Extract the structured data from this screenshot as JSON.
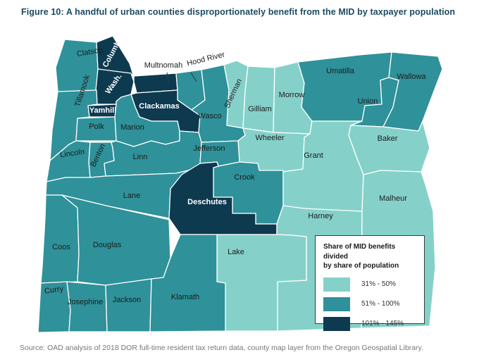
{
  "figure": {
    "title": "Figure 10: A handful of urban counties disproportionately benefit from the MID by taxpayer population",
    "source": "Source: OAD analysis of 2018 DOR full-time resident tax return data, county map layer from the Oregon Geospatial Library."
  },
  "legend": {
    "title_line1": "Share of MID benefits divided",
    "title_line2": "by share of population",
    "items": [
      {
        "label": "31% - 50%",
        "color": "#85d1ca"
      },
      {
        "label": "51% - 100%",
        "color": "#2f9199"
      },
      {
        "label": "101% - 145%",
        "color": "#0e3a50"
      }
    ]
  },
  "map": {
    "region": "Oregon counties",
    "stroke_color": "#ffffff"
  },
  "chart_data": {
    "type": "heatmap",
    "subtype": "choropleth-county-map",
    "region": "Oregon",
    "title": "Figure 10: A handful of urban counties disproportionately benefit from the MID by taxpayer population",
    "legend_title": "Share of MID benefits divided by share of population",
    "buckets": [
      "31% - 50%",
      "51% - 100%",
      "101% - 145%"
    ],
    "counties": [
      {
        "name": "Clatsop",
        "map_label": "Clatsop",
        "bucket": "51% - 100%"
      },
      {
        "name": "Columbia",
        "map_label": "Columb.",
        "bucket": "101% - 145%"
      },
      {
        "name": "Washington",
        "map_label": "Wash.",
        "bucket": "101% - 145%"
      },
      {
        "name": "Multnomah",
        "map_label": "Multnomah",
        "bucket": "101% - 145%"
      },
      {
        "name": "Hood River",
        "map_label": "Hood River",
        "bucket": "51% - 100%"
      },
      {
        "name": "Tillamook",
        "map_label": "Tillamook",
        "bucket": "51% - 100%"
      },
      {
        "name": "Yamhill",
        "map_label": "Yamhill",
        "bucket": "101% - 145%"
      },
      {
        "name": "Clackamas",
        "map_label": "Clackamas",
        "bucket": "101% - 145%"
      },
      {
        "name": "Marion",
        "map_label": "Marion",
        "bucket": "51% - 100%"
      },
      {
        "name": "Polk",
        "map_label": "Polk",
        "bucket": "51% - 100%"
      },
      {
        "name": "Lincoln",
        "map_label": "Lincoln",
        "bucket": "51% - 100%"
      },
      {
        "name": "Benton",
        "map_label": "Benton",
        "bucket": "51% - 100%"
      },
      {
        "name": "Linn",
        "map_label": "Linn",
        "bucket": "51% - 100%"
      },
      {
        "name": "Lane",
        "map_label": "Lane",
        "bucket": "51% - 100%"
      },
      {
        "name": "Wasco",
        "map_label": "Wasco",
        "bucket": "51% - 100%"
      },
      {
        "name": "Sherman",
        "map_label": "Sherman",
        "bucket": "31% - 50%"
      },
      {
        "name": "Gilliam",
        "map_label": "Gilliam",
        "bucket": "31% - 50%"
      },
      {
        "name": "Morrow",
        "map_label": "Morrow",
        "bucket": "31% - 50%"
      },
      {
        "name": "Umatilla",
        "map_label": "Umatilla",
        "bucket": "51% - 100%"
      },
      {
        "name": "Union",
        "map_label": "Union",
        "bucket": "51% - 100%"
      },
      {
        "name": "Wallowa",
        "map_label": "Wallowa",
        "bucket": "51% - 100%"
      },
      {
        "name": "Wheeler",
        "map_label": "Wheeler",
        "bucket": "31% - 50%"
      },
      {
        "name": "Jefferson",
        "map_label": "Jefferson",
        "bucket": "51% - 100%"
      },
      {
        "name": "Crook",
        "map_label": "Crook",
        "bucket": "51% - 100%"
      },
      {
        "name": "Grant",
        "map_label": "Grant",
        "bucket": "31% - 50%"
      },
      {
        "name": "Baker",
        "map_label": "Baker",
        "bucket": "31% - 50%"
      },
      {
        "name": "Deschutes",
        "map_label": "Deschutes",
        "bucket": "101% - 145%"
      },
      {
        "name": "Harney",
        "map_label": "Harney",
        "bucket": "31% - 50%"
      },
      {
        "name": "Malheur",
        "map_label": "Malheur",
        "bucket": "31% - 50%"
      },
      {
        "name": "Lake",
        "map_label": "Lake",
        "bucket": "31% - 50%"
      },
      {
        "name": "Coos",
        "map_label": "Coos",
        "bucket": "51% - 100%"
      },
      {
        "name": "Douglas",
        "map_label": "Douglas",
        "bucket": "51% - 100%"
      },
      {
        "name": "Curry",
        "map_label": "Curry",
        "bucket": "51% - 100%"
      },
      {
        "name": "Josephine",
        "map_label": "Josephine",
        "bucket": "51% - 100%"
      },
      {
        "name": "Jackson",
        "map_label": "Jackson",
        "bucket": "51% - 100%"
      },
      {
        "name": "Klamath",
        "map_label": "Klamath",
        "bucket": "51% - 100%"
      }
    ],
    "source": "Source: OAD analysis of 2018 DOR full-time resident tax return data, county map layer from the Oregon Geospatial Library."
  }
}
